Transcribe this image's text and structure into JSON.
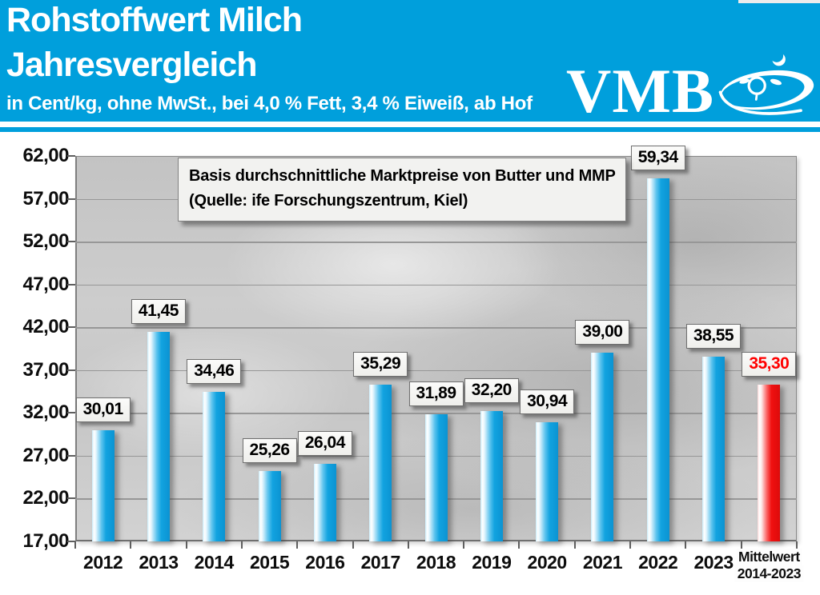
{
  "colors": {
    "brand_blue": "#009FDC",
    "bar_blue": "#12A3E0",
    "bar_red": "#F01010",
    "highlight_text": "#FF0000",
    "gridline": "#979797",
    "plot_border": "#7F7F7F"
  },
  "header": {
    "title_line1": "Rohstoffwert Milch",
    "title_line2": "Jahresvergleich",
    "subtitle": "in Cent/kg, ohne MwSt., bei 4,0 % Fett, 3,4 % Eiweiß, ab Hof",
    "logo_text": "VMB"
  },
  "annotation_box": {
    "line1": "Basis durchschnittliche Marktpreise von Butter und MMP",
    "line2": "(Quelle: ife Forschungszentrum, Kiel)"
  },
  "chart_data": {
    "type": "bar",
    "title": "Rohstoffwert Milch Jahresvergleich",
    "unit": "Cent/kg",
    "categories": [
      "2012",
      "2013",
      "2014",
      "2015",
      "2016",
      "2017",
      "2018",
      "2019",
      "2020",
      "2021",
      "2022",
      "2023",
      "Mittelwert\n2014-2023"
    ],
    "values": [
      30.01,
      41.45,
      34.46,
      25.26,
      26.04,
      35.29,
      31.89,
      32.2,
      30.94,
      39.0,
      59.34,
      38.55,
      35.3
    ],
    "value_labels": [
      "30,01",
      "41,45",
      "34,46",
      "25,26",
      "26,04",
      "35,29",
      "31,89",
      "32,20",
      "30,94",
      "39,00",
      "59,34",
      "38,55",
      "35,30"
    ],
    "highlight_index": 12,
    "ylim": [
      17,
      62
    ],
    "ytick_step": 5,
    "ytick_labels": [
      "62,00",
      "57,00",
      "52,00",
      "47,00",
      "42,00",
      "37,00",
      "32,00",
      "27,00",
      "22,00",
      "17,00"
    ],
    "grid": true,
    "legend": false
  }
}
